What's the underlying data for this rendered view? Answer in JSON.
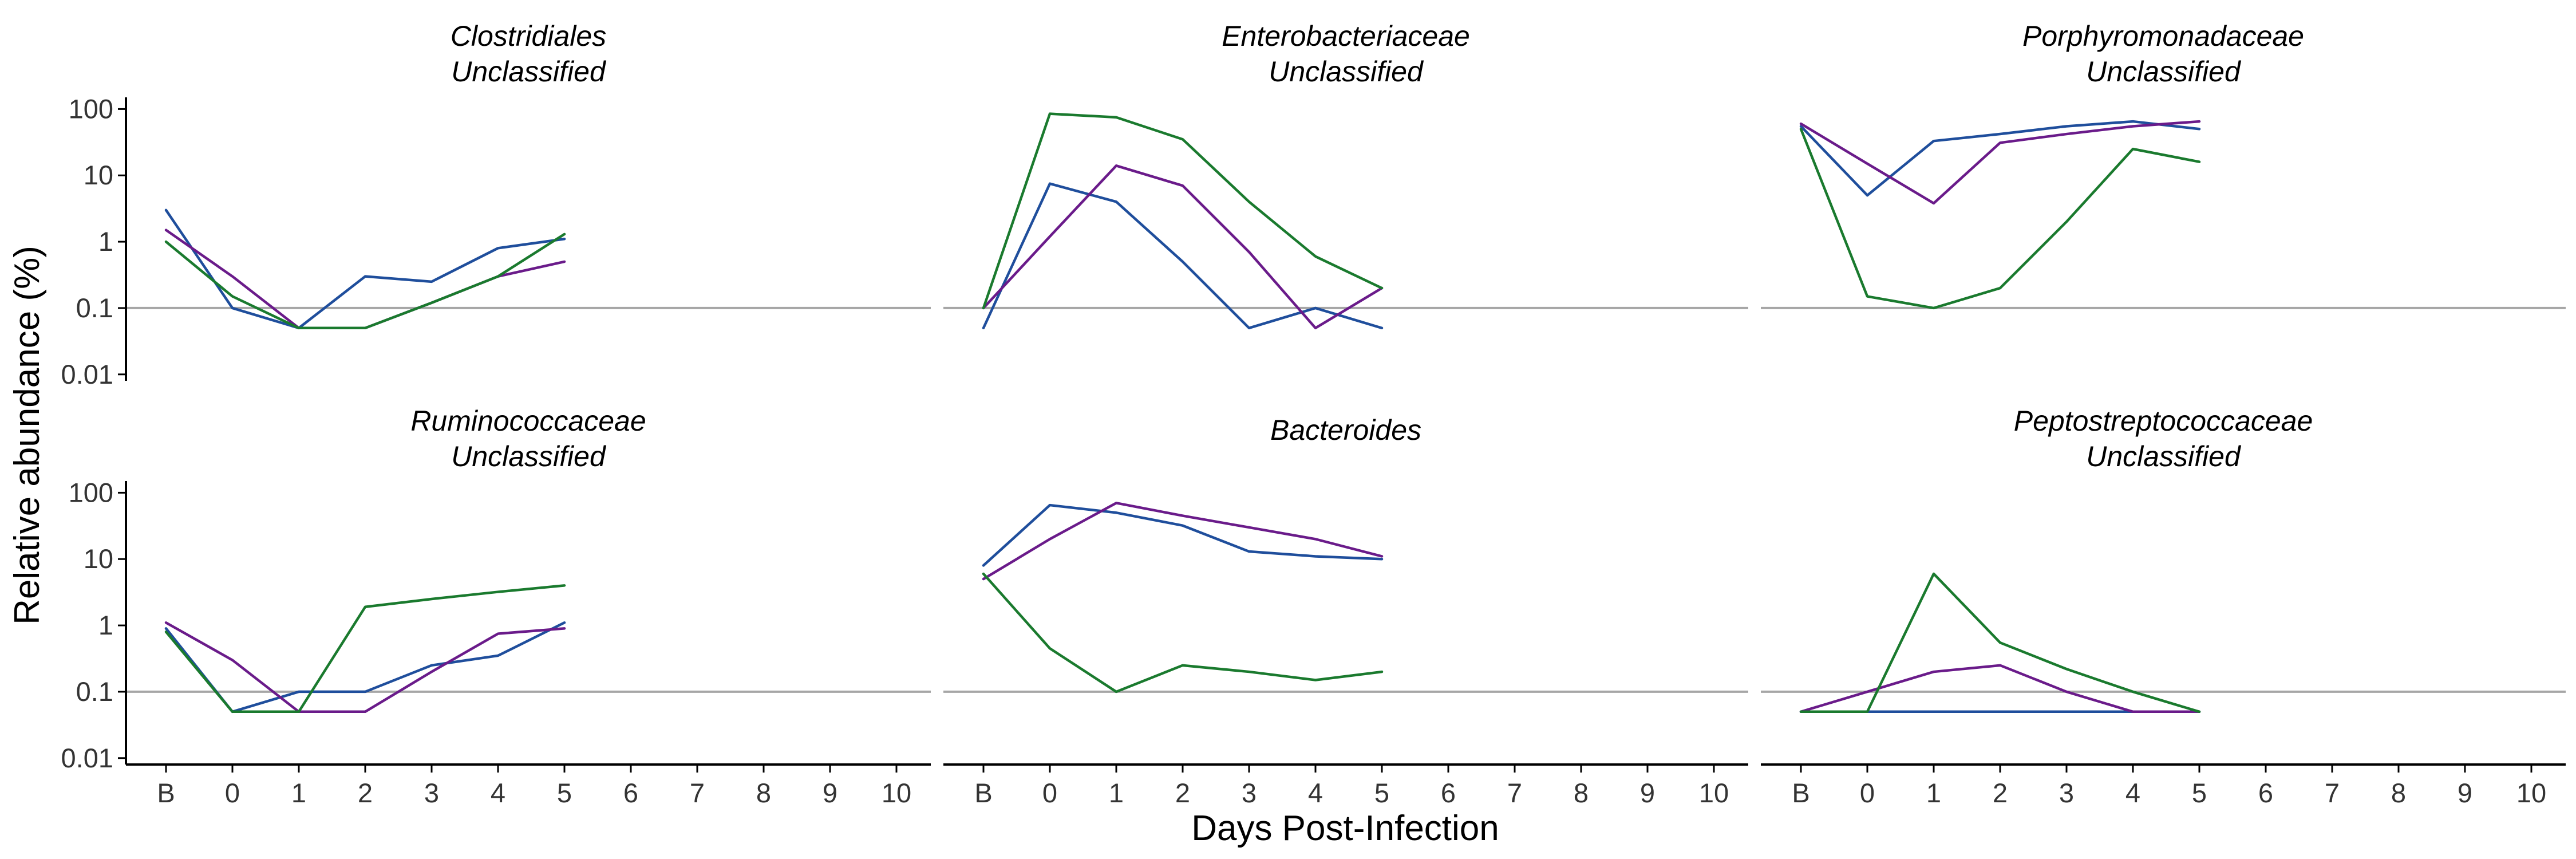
{
  "chart_data": {
    "type": "line",
    "xlabel": "Days Post-Infection",
    "ylabel": "Relative abundance (%)",
    "x_categories": [
      "B",
      "0",
      "1",
      "2",
      "3",
      "4",
      "5",
      "6",
      "7",
      "8",
      "9",
      "10"
    ],
    "y_scale": "log10",
    "ylim": [
      0.008,
      150
    ],
    "y_ticks": [
      0.01,
      0.1,
      1,
      10,
      100
    ],
    "y_tick_labels": [
      "0.01",
      "0.1",
      "1",
      "10",
      "100"
    ],
    "reference_line_y": 0.1,
    "series_colors": [
      "#1f4e9c",
      "#6a1b8a",
      "#1a7a2e"
    ],
    "panels": [
      {
        "title_lines": [
          "Clostridiales",
          "Unclassified"
        ],
        "series": [
          {
            "color": "#1f4e9c",
            "x": [
              "B",
              "0",
              "1",
              "2",
              "3",
              "4",
              "5"
            ],
            "y": [
              3,
              0.1,
              0.05,
              0.3,
              0.25,
              0.8,
              1.1
            ]
          },
          {
            "color": "#6a1b8a",
            "x": [
              "B",
              "0",
              "1",
              "2",
              "3",
              "4",
              "5"
            ],
            "y": [
              1.5,
              0.3,
              0.05,
              0.05,
              0.12,
              0.3,
              0.5
            ]
          },
          {
            "color": "#1a7a2e",
            "x": [
              "B",
              "0",
              "1",
              "2",
              "3",
              "4",
              "5"
            ],
            "y": [
              1,
              0.15,
              0.05,
              0.05,
              0.12,
              0.3,
              1.3
            ]
          }
        ]
      },
      {
        "title_lines": [
          "Enterobacteriaceae",
          "Unclassified"
        ],
        "series": [
          {
            "color": "#1f4e9c",
            "x": [
              "B",
              "0",
              "1",
              "2",
              "3",
              "4",
              "5"
            ],
            "y": [
              0.05,
              7.5,
              4,
              0.5,
              0.05,
              0.1,
              0.05
            ]
          },
          {
            "color": "#6a1b8a",
            "x": [
              "B",
              "0",
              "1",
              "2",
              "3",
              "4",
              "5"
            ],
            "y": [
              0.1,
              1.2,
              14,
              7,
              0.7,
              0.05,
              0.2
            ]
          },
          {
            "color": "#1a7a2e",
            "x": [
              "B",
              "0",
              "1",
              "2",
              "3",
              "4",
              "5"
            ],
            "y": [
              0.1,
              85,
              75,
              35,
              4,
              0.6,
              0.2
            ]
          }
        ]
      },
      {
        "title_lines": [
          "Porphyromonadaceae",
          "Unclassified"
        ],
        "series": [
          {
            "color": "#1f4e9c",
            "x": [
              "B",
              "0",
              "1",
              "2",
              "3",
              "4",
              "5"
            ],
            "y": [
              55,
              5,
              33,
              42,
              55,
              65,
              50
            ]
          },
          {
            "color": "#6a1b8a",
            "x": [
              "B",
              "0",
              "1",
              "2",
              "3",
              "4",
              "5"
            ],
            "y": [
              60,
              15,
              3.8,
              31,
              42,
              55,
              65
            ]
          },
          {
            "color": "#1a7a2e",
            "x": [
              "B",
              "0",
              "1",
              "2",
              "3",
              "4",
              "5"
            ],
            "y": [
              50,
              0.15,
              0.1,
              0.2,
              2,
              25,
              16
            ]
          }
        ]
      },
      {
        "title_lines": [
          "Ruminococcaceae",
          "Unclassified"
        ],
        "series": [
          {
            "color": "#1f4e9c",
            "x": [
              "B",
              "0",
              "1",
              "2",
              "3",
              "4",
              "5"
            ],
            "y": [
              0.9,
              0.05,
              0.1,
              0.1,
              0.25,
              0.35,
              1.1
            ]
          },
          {
            "color": "#6a1b8a",
            "x": [
              "B",
              "0",
              "1",
              "2",
              "3",
              "4",
              "5"
            ],
            "y": [
              1.1,
              0.3,
              0.05,
              0.05,
              0.2,
              0.75,
              0.9
            ]
          },
          {
            "color": "#1a7a2e",
            "x": [
              "B",
              "0",
              "1",
              "2",
              "3",
              "4",
              "5"
            ],
            "y": [
              0.8,
              0.05,
              0.05,
              1.9,
              2.5,
              3.2,
              4
            ]
          }
        ]
      },
      {
        "title_lines": [
          "Bacteroides"
        ],
        "series": [
          {
            "color": "#1f4e9c",
            "x": [
              "B",
              "0",
              "1",
              "2",
              "3",
              "4",
              "5"
            ],
            "y": [
              8,
              65,
              50,
              32,
              13,
              11,
              10
            ]
          },
          {
            "color": "#6a1b8a",
            "x": [
              "B",
              "0",
              "1",
              "2",
              "3",
              "4",
              "5"
            ],
            "y": [
              5,
              20,
              70,
              45,
              30,
              20,
              11
            ]
          },
          {
            "color": "#1a7a2e",
            "x": [
              "B",
              "0",
              "1",
              "2",
              "3",
              "4",
              "5"
            ],
            "y": [
              6,
              0.45,
              0.1,
              0.25,
              0.2,
              0.15,
              0.2
            ]
          }
        ]
      },
      {
        "title_lines": [
          "Peptostreptococcaceae",
          "Unclassified"
        ],
        "series": [
          {
            "color": "#1f4e9c",
            "x": [
              "B",
              "0",
              "1",
              "2",
              "3",
              "4",
              "5"
            ],
            "y": [
              0.05,
              0.05,
              0.05,
              0.05,
              0.05,
              0.05,
              0.05
            ]
          },
          {
            "color": "#6a1b8a",
            "x": [
              "B",
              "0",
              "1",
              "2",
              "3",
              "4",
              "5"
            ],
            "y": [
              0.05,
              0.1,
              0.2,
              0.25,
              0.1,
              0.05,
              0.05
            ]
          },
          {
            "color": "#1a7a2e",
            "x": [
              "B",
              "0",
              "1",
              "2",
              "3",
              "4",
              "5"
            ],
            "y": [
              0.05,
              0.05,
              6,
              0.55,
              0.22,
              0.1,
              0.05
            ]
          }
        ]
      }
    ]
  }
}
